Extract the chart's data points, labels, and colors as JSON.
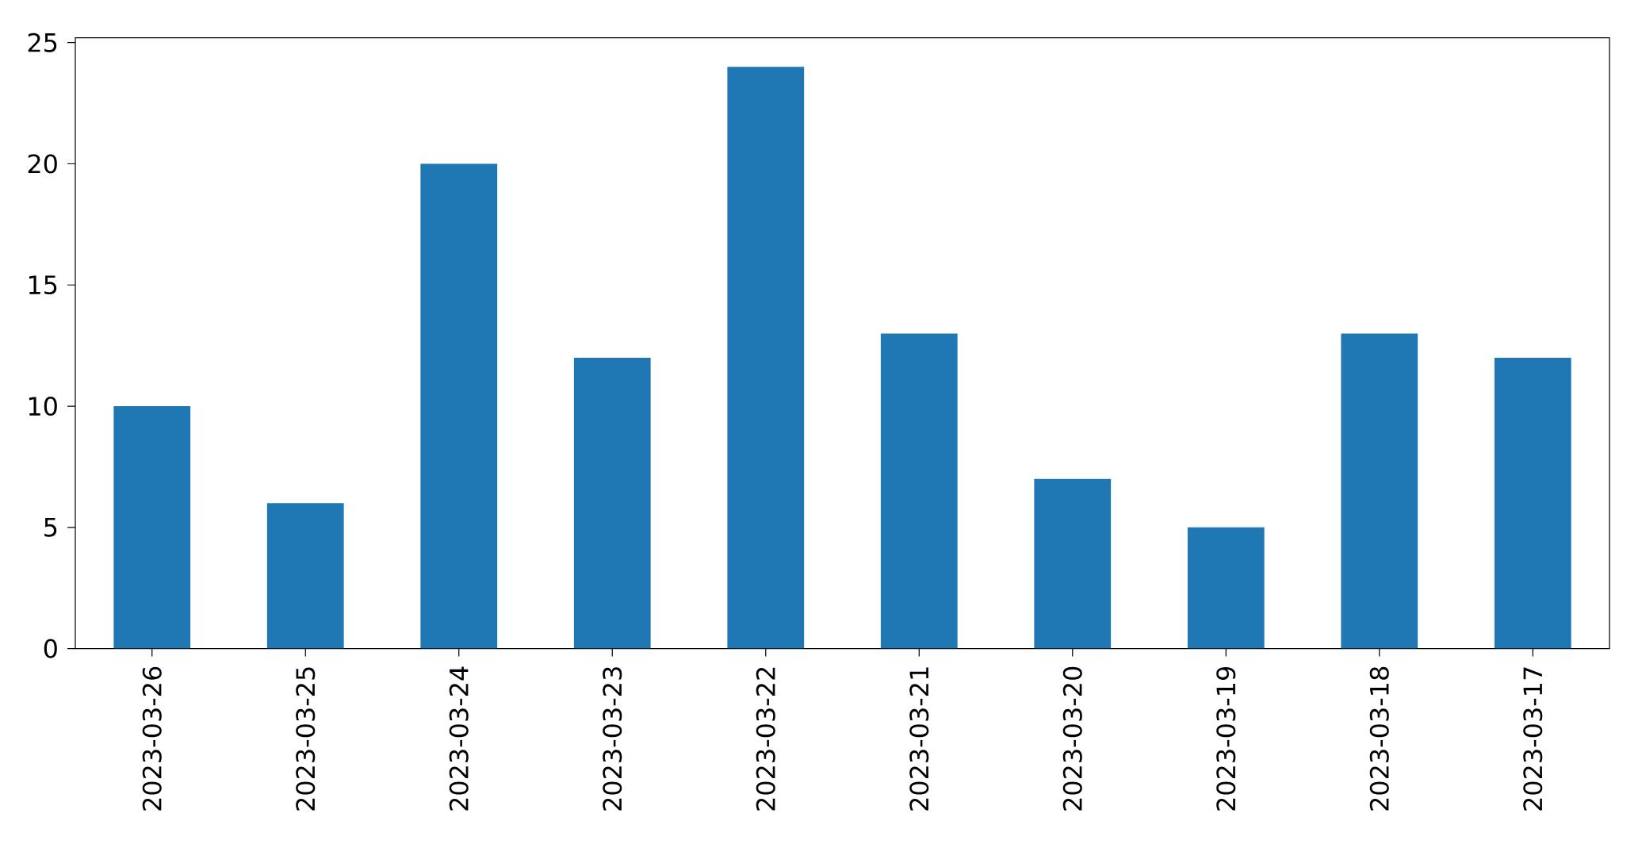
{
  "chart_data": {
    "type": "bar",
    "categories": [
      "2023-03-26",
      "2023-03-25",
      "2023-03-24",
      "2023-03-23",
      "2023-03-22",
      "2023-03-21",
      "2023-03-20",
      "2023-03-19",
      "2023-03-18",
      "2023-03-17"
    ],
    "values": [
      10,
      6,
      20,
      12,
      24,
      13,
      7,
      5,
      13,
      12
    ],
    "color": "#1f77b4",
    "ylim": [
      0,
      25.2
    ],
    "yticks": [
      0,
      5,
      10,
      15,
      20,
      25
    ]
  }
}
